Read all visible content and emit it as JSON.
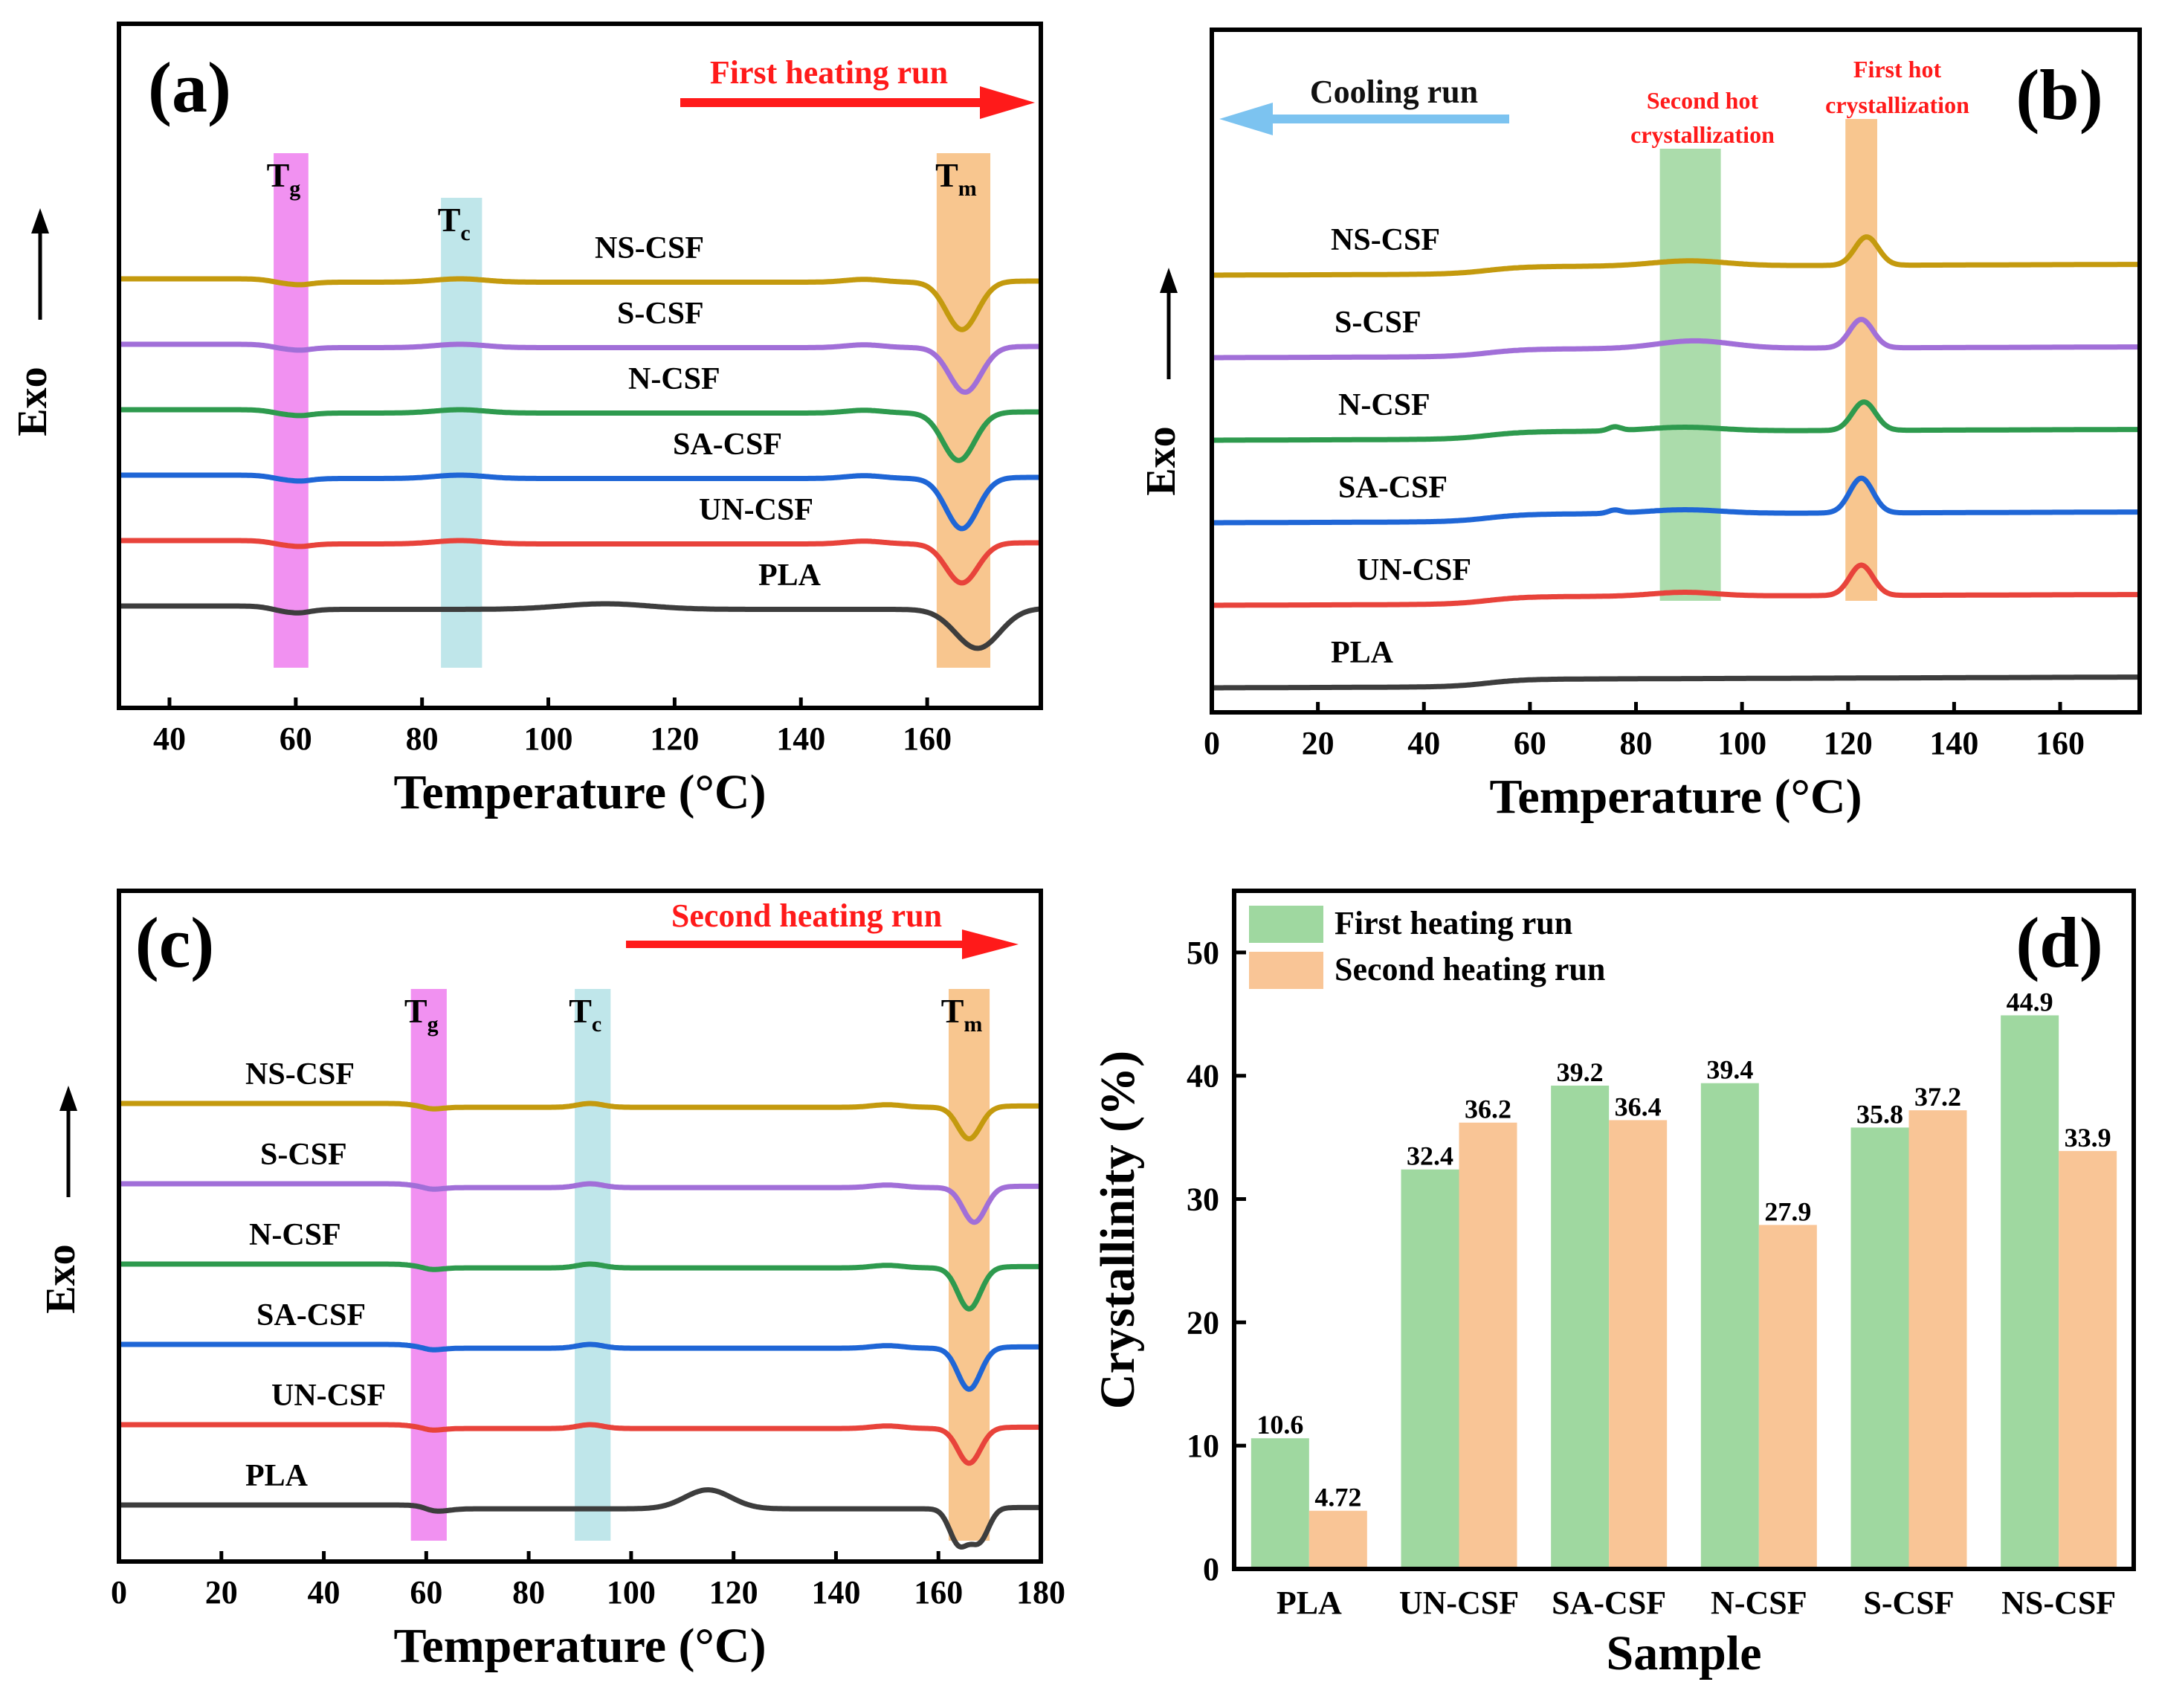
{
  "colors": {
    "PLA": "#3d3d3d",
    "UN-CSF": "#e8433b",
    "SA-CSF": "#1f66d6",
    "N-CSF": "#2e9a4e",
    "S-CSF": "#a16fd8",
    "NS-CSF": "#c49a0e",
    "tg_band": "#ec6cec",
    "tc_band": "#a9dde3",
    "tm_band": "#f6b36a",
    "green_band": "#8fd08f",
    "arrow_red": "#ff1a1a",
    "arrow_blue": "#7cc3f0",
    "bar_first": "#9fd8a0",
    "bar_second": "#f9c596"
  },
  "chart_data": [
    {
      "panel": "(a)",
      "type": "line",
      "xlabel": "Temperature (°C)",
      "ylabel": "Exo",
      "xlim": [
        32,
        178
      ],
      "xticks": [
        40,
        60,
        80,
        100,
        120,
        140,
        160
      ],
      "run_label": "First heating run",
      "bands": [
        {
          "label": "T",
          "sub": "g",
          "range": [
            56.5,
            62
          ]
        },
        {
          "label": "T",
          "sub": "c",
          "range": [
            83,
            89.5
          ]
        },
        {
          "label": "T",
          "sub": "m",
          "range": [
            161.5,
            170
          ]
        }
      ],
      "series": [
        {
          "name": "NS-CSF",
          "baseline": 0.88,
          "events": [
            {
              "t": 59,
              "a": -0.08,
              "w": 2.5
            },
            {
              "t": 86,
              "a": 0.06,
              "w": 4
            },
            {
              "t": 150,
              "a": 0.05,
              "w": 3
            },
            {
              "t": 165.5,
              "a": -0.85,
              "w": 2.5
            }
          ]
        },
        {
          "name": "S-CSF",
          "baseline": 0.68,
          "events": [
            {
              "t": 59,
              "a": -0.08,
              "w": 2.5
            },
            {
              "t": 86,
              "a": 0.06,
              "w": 4
            },
            {
              "t": 150,
              "a": 0.05,
              "w": 3
            },
            {
              "t": 166,
              "a": -0.8,
              "w": 2.5
            }
          ]
        },
        {
          "name": "N-CSF",
          "baseline": 0.48,
          "events": [
            {
              "t": 59,
              "a": -0.08,
              "w": 2.5
            },
            {
              "t": 86,
              "a": 0.06,
              "w": 4
            },
            {
              "t": 150,
              "a": 0.05,
              "w": 3
            },
            {
              "t": 165,
              "a": -0.85,
              "w": 2.5
            }
          ]
        },
        {
          "name": "SA-CSF",
          "baseline": 0.28,
          "events": [
            {
              "t": 59,
              "a": -0.08,
              "w": 2.5
            },
            {
              "t": 86,
              "a": 0.06,
              "w": 4
            },
            {
              "t": 150,
              "a": 0.05,
              "w": 3
            },
            {
              "t": 165.5,
              "a": -0.9,
              "w": 2.5
            }
          ]
        },
        {
          "name": "UN-CSF",
          "baseline": 0.08,
          "events": [
            {
              "t": 59,
              "a": -0.08,
              "w": 2.5
            },
            {
              "t": 86,
              "a": 0.06,
              "w": 4
            },
            {
              "t": 150,
              "a": 0.05,
              "w": 3
            },
            {
              "t": 165.5,
              "a": -0.7,
              "w": 2.5
            }
          ]
        },
        {
          "name": "PLA",
          "baseline": -0.12,
          "events": [
            {
              "t": 59,
              "a": -0.1,
              "w": 2.5
            },
            {
              "t": 109,
              "a": 0.1,
              "w": 7
            },
            {
              "t": 168,
              "a": -0.7,
              "w": 3.5
            }
          ]
        }
      ],
      "curve_labels": [
        "NS-CSF",
        "S-CSF",
        "N-CSF",
        "SA-CSF",
        "UN-CSF",
        "PLA"
      ]
    },
    {
      "panel": "(b)",
      "type": "line",
      "xlabel": "Temperature (°C)",
      "ylabel": "Exo",
      "xlim": [
        0,
        175
      ],
      "xticks": [
        0,
        20,
        40,
        60,
        80,
        100,
        120,
        140,
        160
      ],
      "run_label": "Cooling run",
      "annotations": [
        "Second hot",
        "crystallization",
        "First hot",
        "crystallization"
      ],
      "bands": [
        {
          "label": "",
          "range": [
            84.5,
            96
          ]
        },
        {
          "label": "",
          "range": [
            119.5,
            125.5
          ]
        }
      ],
      "series": [
        {
          "name": "NS-CSF",
          "baseline": 0.88,
          "events": [
            {
              "t": 90,
              "a": 0.08,
              "w": 7
            },
            {
              "t": 123.5,
              "a": 0.45,
              "w": 2.2
            }
          ]
        },
        {
          "name": "S-CSF",
          "baseline": 0.66,
          "events": [
            {
              "t": 91,
              "a": 0.12,
              "w": 7
            },
            {
              "t": 122.5,
              "a": 0.45,
              "w": 2.2
            }
          ]
        },
        {
          "name": "N-CSF",
          "baseline": 0.44,
          "events": [
            {
              "t": 76,
              "a": 0.06,
              "w": 1.2
            },
            {
              "t": 89,
              "a": 0.06,
              "w": 7
            },
            {
              "t": 123,
              "a": 0.45,
              "w": 2.2
            }
          ]
        },
        {
          "name": "SA-CSF",
          "baseline": 0.22,
          "events": [
            {
              "t": 76,
              "a": 0.05,
              "w": 1.2
            },
            {
              "t": 89,
              "a": 0.06,
              "w": 7
            },
            {
              "t": 122.5,
              "a": 0.55,
              "w": 2.2
            }
          ]
        },
        {
          "name": "UN-CSF",
          "baseline": 0.0,
          "events": [
            {
              "t": 89,
              "a": 0.06,
              "w": 6
            },
            {
              "t": 122.5,
              "a": 0.48,
              "w": 2.2
            }
          ]
        },
        {
          "name": "PLA",
          "baseline": -0.2,
          "events": []
        }
      ],
      "curve_labels": [
        "NS-CSF",
        "S-CSF",
        "N-CSF",
        "SA-CSF",
        "UN-CSF",
        "PLA"
      ]
    },
    {
      "panel": "(c)",
      "type": "line",
      "xlabel": "Temperature (°C)",
      "ylabel": "Exo",
      "xlim": [
        0,
        180
      ],
      "xticks": [
        0,
        20,
        40,
        60,
        80,
        100,
        120,
        140,
        160,
        180
      ],
      "run_label": "Second heating run",
      "bands": [
        {
          "label": "T",
          "sub": "g",
          "range": [
            57,
            64
          ]
        },
        {
          "label": "T",
          "sub": "c",
          "range": [
            89,
            96
          ]
        },
        {
          "label": "T",
          "sub": "m",
          "range": [
            162,
            170
          ]
        }
      ],
      "series": [
        {
          "name": "NS-CSF",
          "baseline": 0.9,
          "events": [
            {
              "t": 60,
              "a": -0.04,
              "w": 2.5
            },
            {
              "t": 92,
              "a": 0.06,
              "w": 2.5
            },
            {
              "t": 150,
              "a": 0.04,
              "w": 3
            },
            {
              "t": 166,
              "a": -0.5,
              "w": 2.2
            }
          ]
        },
        {
          "name": "S-CSF",
          "baseline": 0.7,
          "events": [
            {
              "t": 60,
              "a": -0.04,
              "w": 2.5
            },
            {
              "t": 92,
              "a": 0.06,
              "w": 2.5
            },
            {
              "t": 150,
              "a": 0.04,
              "w": 3
            },
            {
              "t": 167,
              "a": -0.55,
              "w": 2.2
            }
          ]
        },
        {
          "name": "N-CSF",
          "baseline": 0.5,
          "events": [
            {
              "t": 60,
              "a": -0.04,
              "w": 2.5
            },
            {
              "t": 92,
              "a": 0.06,
              "w": 2.5
            },
            {
              "t": 150,
              "a": 0.04,
              "w": 3
            },
            {
              "t": 166,
              "a": -0.65,
              "w": 2.2
            }
          ]
        },
        {
          "name": "SA-CSF",
          "baseline": 0.28,
          "events": [
            {
              "t": 60,
              "a": -0.04,
              "w": 2.5
            },
            {
              "t": 92,
              "a": 0.06,
              "w": 2.5
            },
            {
              "t": 150,
              "a": 0.04,
              "w": 3
            },
            {
              "t": 166,
              "a": -0.65,
              "w": 2.2
            }
          ]
        },
        {
          "name": "UN-CSF",
          "baseline": 0.06,
          "events": [
            {
              "t": 60,
              "a": -0.04,
              "w": 2.5
            },
            {
              "t": 92,
              "a": 0.06,
              "w": 2.5
            },
            {
              "t": 150,
              "a": 0.04,
              "w": 3
            },
            {
              "t": 166,
              "a": -0.55,
              "w": 2.2
            }
          ]
        },
        {
          "name": "PLA",
          "baseline": -0.18,
          "events": [
            {
              "t": 62,
              "a": -0.04,
              "w": 2.5
            },
            {
              "t": 115,
              "a": 0.3,
              "w": 4.5
            },
            {
              "t": 164,
              "a": -0.55,
              "w": 1.8
            },
            {
              "t": 168,
              "a": -0.5,
              "w": 1.8
            }
          ]
        }
      ],
      "curve_labels": [
        "NS-CSF",
        "S-CSF",
        "N-CSF",
        "SA-CSF",
        "UN-CSF",
        "PLA"
      ]
    },
    {
      "panel": "(d)",
      "type": "bar",
      "xlabel": "Sample",
      "ylabel": "Crystallinity (%)",
      "ylim": [
        0,
        55
      ],
      "yticks": [
        0,
        10,
        20,
        30,
        40,
        50
      ],
      "categories": [
        "PLA",
        "UN-CSF",
        "SA-CSF",
        "N-CSF",
        "S-CSF",
        "NS-CSF"
      ],
      "series": [
        {
          "name": "First heating run",
          "values": [
            10.6,
            32.4,
            39.2,
            39.4,
            35.8,
            44.9
          ],
          "labels": [
            "10.6",
            "32.4",
            "39.2",
            "39.4",
            "35.8",
            "44.9"
          ]
        },
        {
          "name": "Second heating run",
          "values": [
            4.72,
            36.2,
            36.4,
            27.9,
            37.2,
            33.9
          ],
          "labels": [
            "4.72",
            "36.2",
            "36.4",
            "27.9",
            "37.2",
            "33.9"
          ]
        }
      ],
      "legend": "top-left"
    }
  ]
}
